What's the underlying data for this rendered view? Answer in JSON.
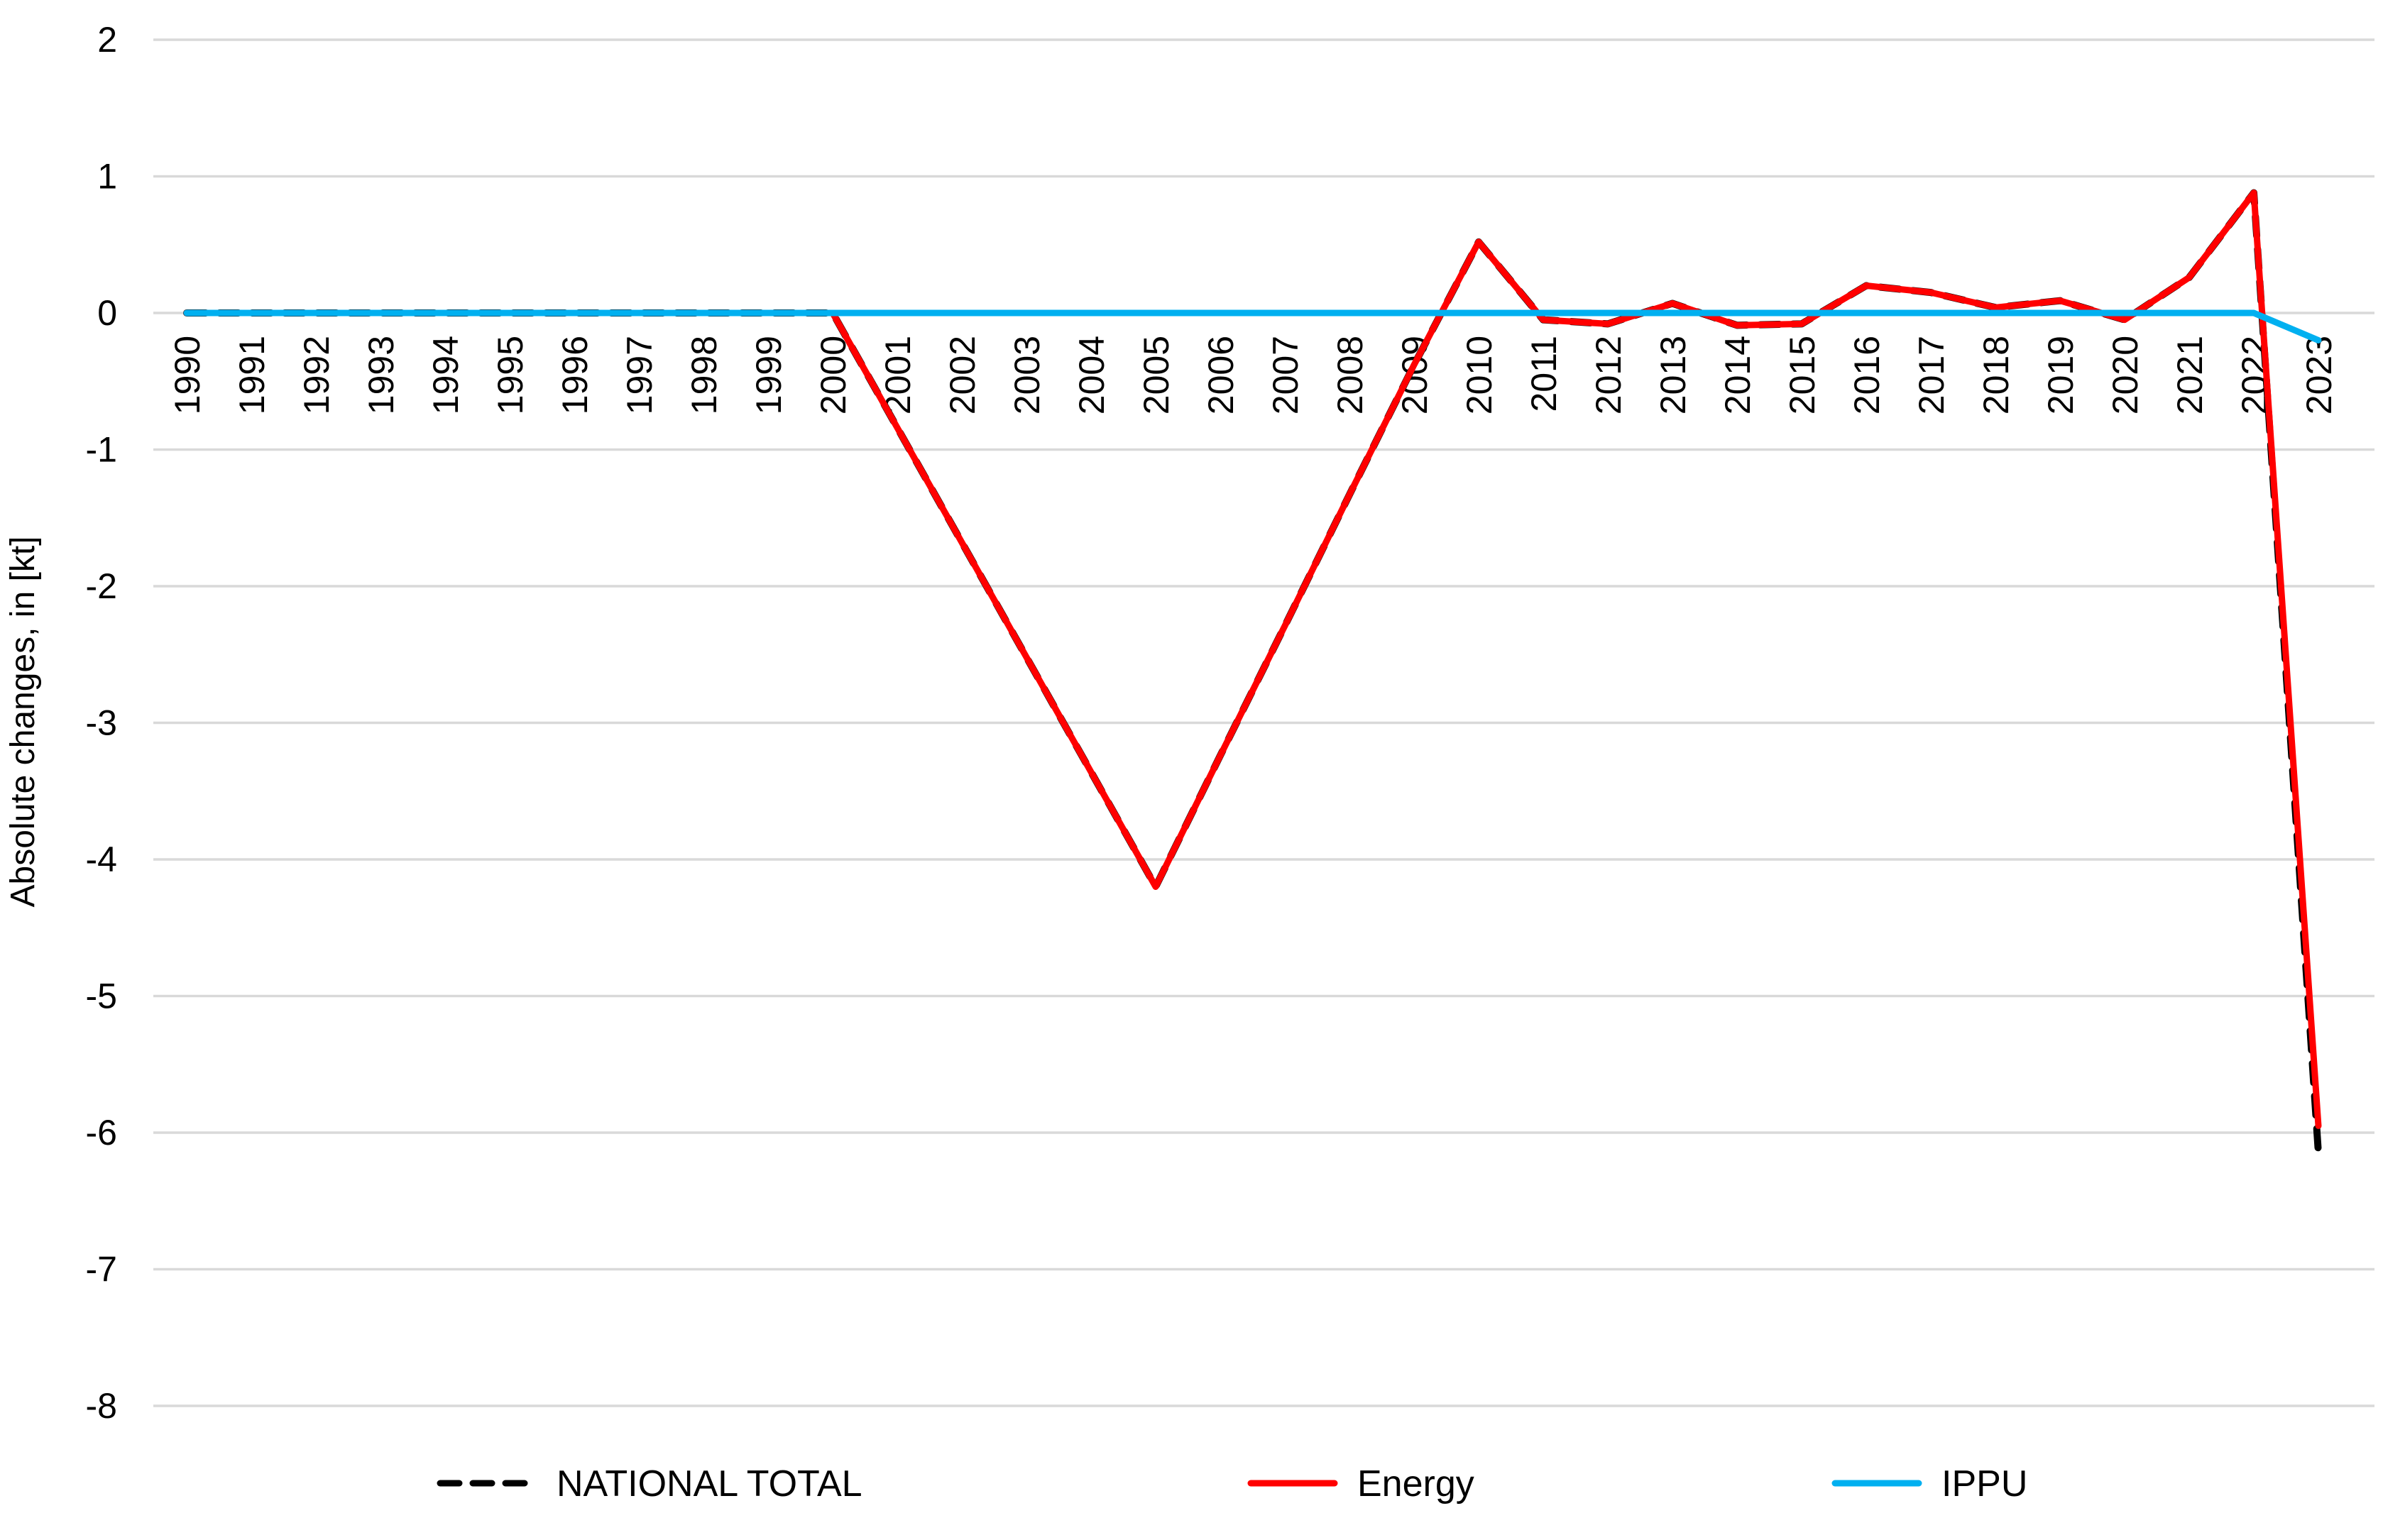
{
  "chart_data": {
    "type": "line",
    "title": "",
    "ylabel": "Absolute changes, in [kt]",
    "xlabel": "",
    "ylim": [
      -8,
      2
    ],
    "yticks": [
      2,
      1,
      0,
      -1,
      -2,
      -3,
      -4,
      -5,
      -6,
      -7,
      -8
    ],
    "grid": true,
    "grid_color": "#D9D9D9",
    "background_color": "#FFFFFF",
    "legend_position": "bottom",
    "x": [
      1990,
      1991,
      1992,
      1993,
      1994,
      1995,
      1996,
      1997,
      1998,
      1999,
      2000,
      2001,
      2002,
      2003,
      2004,
      2005,
      2006,
      2007,
      2008,
      2009,
      2010,
      2011,
      2012,
      2013,
      2014,
      2015,
      2016,
      2017,
      2018,
      2019,
      2020,
      2021,
      2022,
      2023
    ],
    "series": [
      {
        "name": "NATIONAL TOTAL",
        "color": "#000000",
        "style": "dashed",
        "values": [
          0,
          0,
          0,
          0,
          0,
          0,
          0,
          0,
          0,
          0,
          0,
          -0.84,
          -1.68,
          -2.52,
          -3.36,
          -4.2,
          -3.24,
          -2.29,
          -1.33,
          -0.38,
          0.52,
          -0.05,
          -0.08,
          0.07,
          -0.09,
          -0.08,
          0.2,
          0.15,
          0.04,
          0.09,
          -0.05,
          0.26,
          0.88,
          -6.15
        ]
      },
      {
        "name": "Energy",
        "color": "#FF0000",
        "style": "solid",
        "values": [
          0,
          0,
          0,
          0,
          0,
          0,
          0,
          0,
          0,
          0,
          0,
          -0.84,
          -1.68,
          -2.52,
          -3.36,
          -4.2,
          -3.24,
          -2.29,
          -1.33,
          -0.38,
          0.52,
          -0.05,
          -0.08,
          0.07,
          -0.09,
          -0.08,
          0.2,
          0.15,
          0.04,
          0.09,
          -0.05,
          0.26,
          0.88,
          -5.95
        ]
      },
      {
        "name": "IPPU",
        "color": "#00B0F0",
        "style": "solid",
        "values": [
          0,
          0,
          0,
          0,
          0,
          0,
          0,
          0,
          0,
          0,
          0,
          0,
          0,
          0,
          0,
          0,
          0,
          0,
          0,
          0,
          0,
          0,
          0,
          0,
          0,
          0,
          0,
          0,
          0,
          0,
          0,
          0,
          0,
          -0.2
        ]
      }
    ]
  }
}
